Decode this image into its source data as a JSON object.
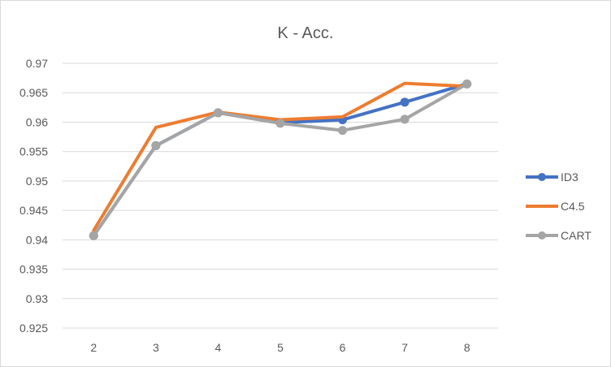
{
  "chart_data": {
    "type": "line",
    "title": "K - Acc.",
    "xlabel": "",
    "ylabel": "",
    "categories": [
      "2",
      "3",
      "4",
      "5",
      "6",
      "7",
      "8"
    ],
    "ylim": [
      0.925,
      0.97
    ],
    "yticks": [
      "0.925",
      "0.93",
      "0.935",
      "0.94",
      "0.945",
      "0.95",
      "0.955",
      "0.96",
      "0.965",
      "0.97"
    ],
    "grid": true,
    "legend": "right",
    "series": [
      {
        "name": "ID3",
        "color": "#4472c4",
        "values": [
          0.9407,
          0.956,
          0.9616,
          0.9599,
          0.9604,
          0.9634,
          0.9665
        ],
        "markers": true
      },
      {
        "name": "C4.5",
        "color": "#ed7d31",
        "values": [
          0.9416,
          0.9591,
          0.9617,
          0.9604,
          0.9609,
          0.9666,
          0.9661
        ],
        "markers": false
      },
      {
        "name": "CART",
        "color": "#a5a5a5",
        "values": [
          0.9407,
          0.956,
          0.9616,
          0.9598,
          0.9586,
          0.9605,
          0.9665
        ],
        "markers": true
      }
    ]
  }
}
